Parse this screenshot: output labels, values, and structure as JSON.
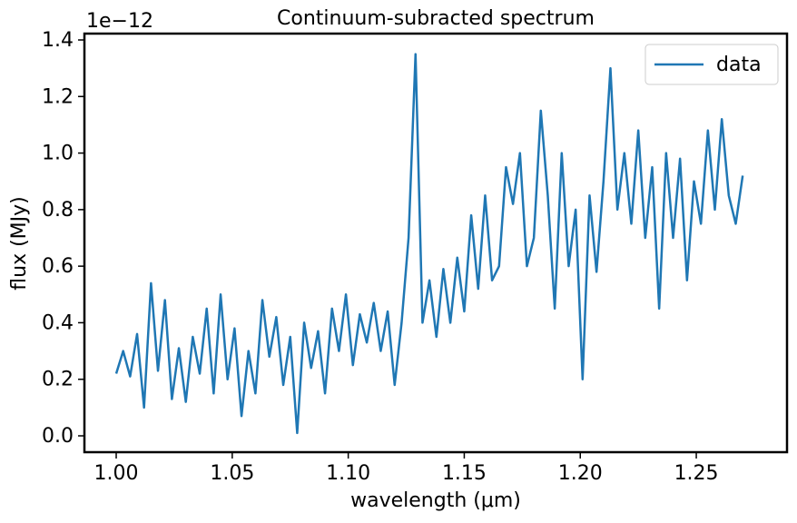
{
  "chart_data": {
    "type": "line",
    "title": "Continuum-subracted spectrum",
    "xlabel": "wavelength (μm)",
    "ylabel": "flux (MJy)",
    "offset_text": "1e−12",
    "x": [
      1.0,
      1.003,
      1.006,
      1.009,
      1.012,
      1.015,
      1.018,
      1.021,
      1.024,
      1.027,
      1.03,
      1.033,
      1.036,
      1.039,
      1.042,
      1.045,
      1.048,
      1.051,
      1.054,
      1.057,
      1.06,
      1.063,
      1.066,
      1.069,
      1.072,
      1.075,
      1.078,
      1.081,
      1.084,
      1.087,
      1.09,
      1.093,
      1.096,
      1.099,
      1.102,
      1.105,
      1.108,
      1.111,
      1.114,
      1.117,
      1.12,
      1.123,
      1.126,
      1.129,
      1.132,
      1.135,
      1.138,
      1.141,
      1.144,
      1.147,
      1.15,
      1.153,
      1.156,
      1.159,
      1.162,
      1.165,
      1.168,
      1.171,
      1.174,
      1.177,
      1.18,
      1.183,
      1.186,
      1.189,
      1.192,
      1.195,
      1.198,
      1.201,
      1.204,
      1.207,
      1.21,
      1.213,
      1.216,
      1.219,
      1.222,
      1.225,
      1.228,
      1.231,
      1.234,
      1.237,
      1.24,
      1.243,
      1.246,
      1.249,
      1.252,
      1.255,
      1.258,
      1.261,
      1.264,
      1.267,
      1.27
    ],
    "series": [
      {
        "name": "data",
        "color": "#1f77b4",
        "values": [
          0.22,
          0.3,
          0.21,
          0.36,
          0.1,
          0.54,
          0.23,
          0.48,
          0.13,
          0.31,
          0.12,
          0.35,
          0.22,
          0.45,
          0.15,
          0.5,
          0.2,
          0.38,
          0.07,
          0.3,
          0.15,
          0.48,
          0.28,
          0.42,
          0.18,
          0.35,
          0.01,
          0.4,
          0.24,
          0.37,
          0.15,
          0.45,
          0.3,
          0.5,
          0.25,
          0.43,
          0.33,
          0.47,
          0.3,
          0.44,
          0.18,
          0.4,
          0.7,
          1.35,
          0.4,
          0.55,
          0.35,
          0.59,
          0.4,
          0.63,
          0.44,
          0.78,
          0.52,
          0.85,
          0.55,
          0.6,
          0.95,
          0.82,
          1.0,
          0.6,
          0.7,
          1.15,
          0.85,
          0.45,
          1.0,
          0.6,
          0.8,
          0.2,
          0.85,
          0.58,
          0.9,
          1.3,
          0.8,
          1.0,
          0.75,
          1.08,
          0.7,
          0.95,
          0.45,
          1.0,
          0.7,
          0.98,
          0.55,
          0.9,
          0.75,
          1.08,
          0.8,
          1.12,
          0.85,
          0.75,
          0.92
        ]
      }
    ],
    "xlim": [
      0.9863,
      1.2891
    ],
    "ylim": [
      -0.0578,
      1.4225
    ],
    "xticks": [
      {
        "value": 1.0,
        "label": "1.00"
      },
      {
        "value": 1.05,
        "label": "1.05"
      },
      {
        "value": 1.1,
        "label": "1.10"
      },
      {
        "value": 1.15,
        "label": "1.15"
      },
      {
        "value": 1.2,
        "label": "1.20"
      },
      {
        "value": 1.25,
        "label": "1.25"
      }
    ],
    "yticks": [
      {
        "value": 0,
        "label": "0.0"
      },
      {
        "value": 0.2,
        "label": "0.2"
      },
      {
        "value": 0.4,
        "label": "0.4"
      },
      {
        "value": 0.6,
        "label": "0.6"
      },
      {
        "value": 0.8,
        "label": "0.8"
      },
      {
        "value": 1.0,
        "label": "1.0"
      },
      {
        "value": 1.2,
        "label": "1.2"
      },
      {
        "value": 1.4,
        "label": "1.4"
      }
    ],
    "grid": false,
    "legend": "upper right"
  }
}
